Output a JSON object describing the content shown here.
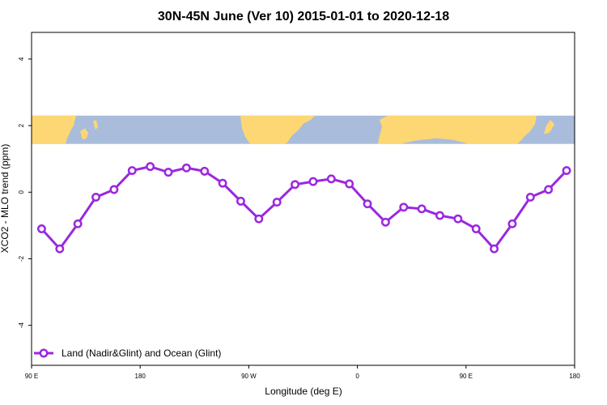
{
  "chart_data": {
    "type": "line",
    "title": "30N-45N June (Ver 10)   2015-01-01 to 2020-12-18",
    "xlabel": "Longitude (deg E)",
    "ylabel": "XCO2 - MLO trend (ppm)",
    "xlim": [
      -90,
      180
    ],
    "ylim": [
      -5.2,
      4.8
    ],
    "x_ticks": [
      {
        "value": -90,
        "label": "90 E"
      },
      {
        "value": -36,
        "label": "180"
      },
      {
        "value": 18,
        "label": "90 W"
      },
      {
        "value": 72,
        "label": "0"
      },
      {
        "value": 126,
        "label": "90 E"
      },
      {
        "value": 180,
        "label": "180"
      }
    ],
    "y_ticks": [
      -4,
      -2,
      0,
      2,
      4
    ],
    "x": [
      -85,
      -76,
      -67,
      -58,
      -49,
      -40,
      -31,
      -22,
      -13,
      -4,
      5,
      14,
      23,
      32,
      41,
      50,
      59,
      68,
      77,
      86,
      95,
      104,
      113,
      122,
      131,
      140,
      149,
      158,
      167,
      176
    ],
    "series": [
      {
        "name": "Land (Nadir&Glint) and Ocean (Glint)",
        "color": "#9b27e0",
        "values": [
          -1.1,
          -1.7,
          -0.95,
          -0.15,
          0.08,
          0.65,
          0.77,
          0.6,
          0.73,
          0.63,
          0.27,
          -0.27,
          -0.8,
          -0.3,
          0.23,
          0.32,
          0.4,
          0.25,
          -0.35,
          -0.9,
          -0.45,
          -0.5,
          -0.7,
          -0.8,
          -1.1,
          -1.7,
          -0.95,
          -0.15,
          0.08,
          0.65
        ]
      }
    ],
    "map_band": {
      "y_range": [
        1.45,
        2.3
      ],
      "land_color": "#fdd773",
      "ocean_color": "#a9bcdb"
    },
    "legend": {
      "placement": "bottom-left"
    },
    "grid": false
  }
}
